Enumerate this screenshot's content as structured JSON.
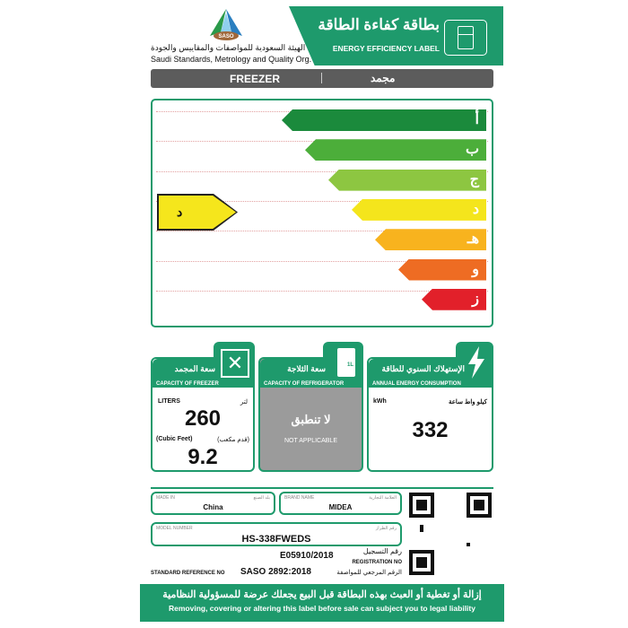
{
  "org": {
    "name_ar": "الهيئة السعودية للمواصفات والمقاييس والجودة",
    "name_en": "Saudi Standards, Metrology and Quality Org.",
    "logo_text": "SASO"
  },
  "header": {
    "title_ar": "بطاقة كفاءة الطاقة",
    "title_en": "ENERGY EFFICIENCY LABEL",
    "icon": "fridge-icon"
  },
  "product_bar": {
    "type_en": "FREEZER",
    "type_ar": "مجمد"
  },
  "rating": {
    "classes": [
      {
        "label": "أ",
        "color": "#1b8a3c"
      },
      {
        "label": "ب",
        "color": "#4cae3a"
      },
      {
        "label": "ج",
        "color": "#8dc641"
      },
      {
        "label": "د",
        "color": "#f4e51c"
      },
      {
        "label": "هـ",
        "color": "#f8b31e"
      },
      {
        "label": "و",
        "color": "#ee6c23"
      },
      {
        "label": "ز",
        "color": "#e2202a"
      }
    ],
    "current": "د"
  },
  "freezer": {
    "title_ar": "سعة المجمد",
    "title_en": "CAPACITY OF FREEZER",
    "liters_en": "LITERS",
    "liters_ar": "لتر",
    "liters": "260",
    "cf_en": "(Cubic Feet)",
    "cf_ar": "(قدم مكعب)",
    "cf": "9.2",
    "icon": "expand-arrows-icon"
  },
  "refrigerator": {
    "title_ar": "سعة الثلاجة",
    "title_en": "CAPACITY OF REFRIGERATOR",
    "na_ar": "لا تنطبق",
    "na_en": "NOT APPLICABLE",
    "icon": "milk-carton-icon",
    "icon_text": "1L"
  },
  "energy": {
    "title_ar": "الإستهلاك السنوي للطاقة",
    "title_en": "ANNUAL ENERGY CONSUMPTION",
    "unit_en": "kWh",
    "unit_ar": "كيلو واط ساعة",
    "value": "332",
    "icon": "lightning-icon"
  },
  "details": {
    "made_in_en": "MADE IN",
    "made_in_ar": "بلد الصنع",
    "made_in": "China",
    "brand_en": "BRAND NAME",
    "brand_ar": "العلامة التجارية",
    "brand": "MIDEA",
    "model_en": "MODEL NUMBER",
    "model_ar": "رقم الطراز",
    "model": "HS-338FWEDS",
    "reg_value": "E05910/2018",
    "reg_ar": "رقم التسجيل",
    "reg_en": "REGISTRATION NO",
    "std_en": "STANDARD REFERENCE NO",
    "std_value": "SASO 2892:2018",
    "std_ar": "الرقم المرجعي للمواصفة"
  },
  "footer": {
    "warning_ar": "إزالة أو تغطية أو العبث بهذه البطاقة قبل البيع يجعلك عرضة للمسؤولية النظامية",
    "warning_en": "Removing, covering or altering this label before sale can subject you to legal liability"
  },
  "colors": {
    "green": "#1e9a6c",
    "bar": "#5c5c5c",
    "na": "#9b9b9b"
  }
}
